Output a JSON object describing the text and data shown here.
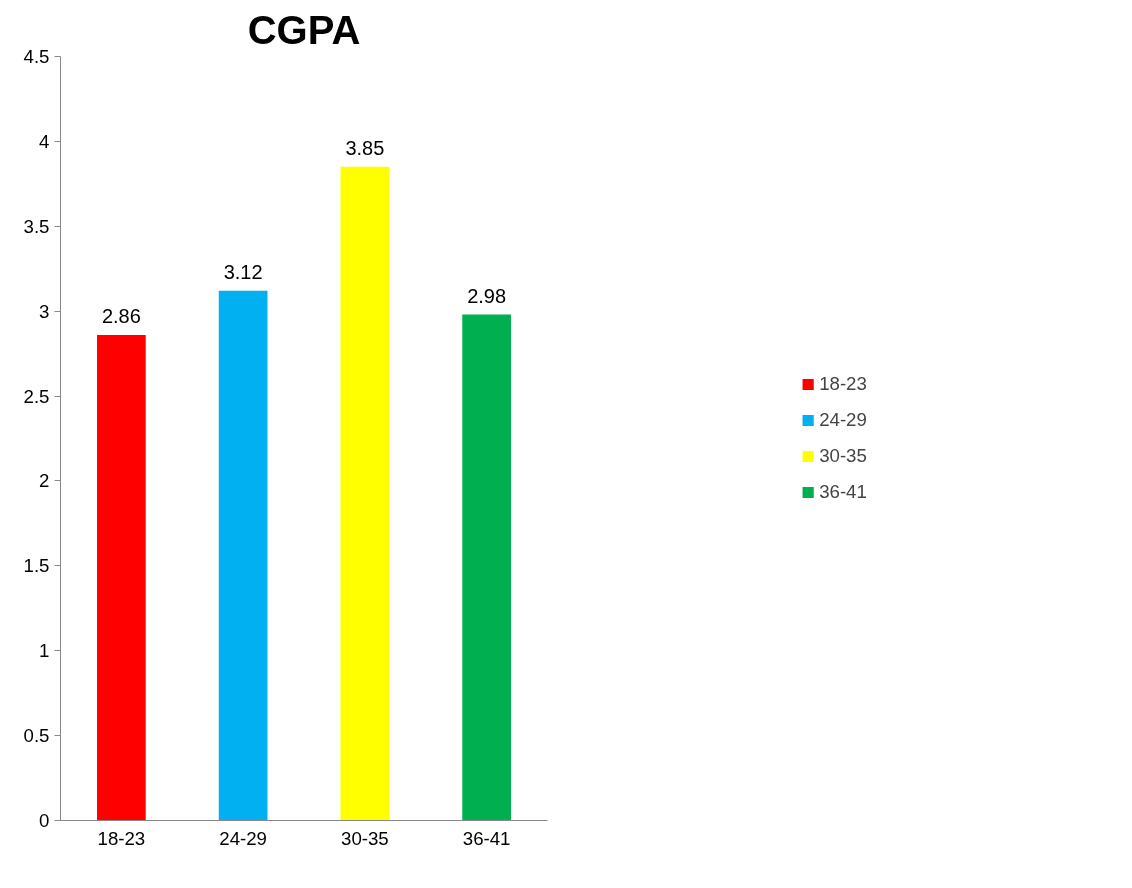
{
  "chart_data": {
    "type": "bar",
    "title": "CGPA",
    "categories": [
      "18-23",
      "24-29",
      "30-35",
      "36-41"
    ],
    "series": [
      {
        "name": "18-23",
        "color": "#ff0000",
        "values": [
          2.86,
          null,
          null,
          null
        ]
      },
      {
        "name": "24-29",
        "color": "#00b0f0",
        "values": [
          null,
          3.12,
          null,
          null
        ]
      },
      {
        "name": "30-35",
        "color": "#ffff00",
        "values": [
          null,
          null,
          3.85,
          null
        ]
      },
      {
        "name": "36-41",
        "color": "#00b050",
        "values": [
          null,
          null,
          null,
          2.98
        ]
      }
    ],
    "ylim": [
      0,
      4.5
    ],
    "yticks": [
      0,
      0.5,
      1,
      1.5,
      2,
      2.5,
      3,
      3.5,
      4,
      4.5
    ],
    "data_labels": true,
    "grid": false,
    "legend": "right"
  }
}
